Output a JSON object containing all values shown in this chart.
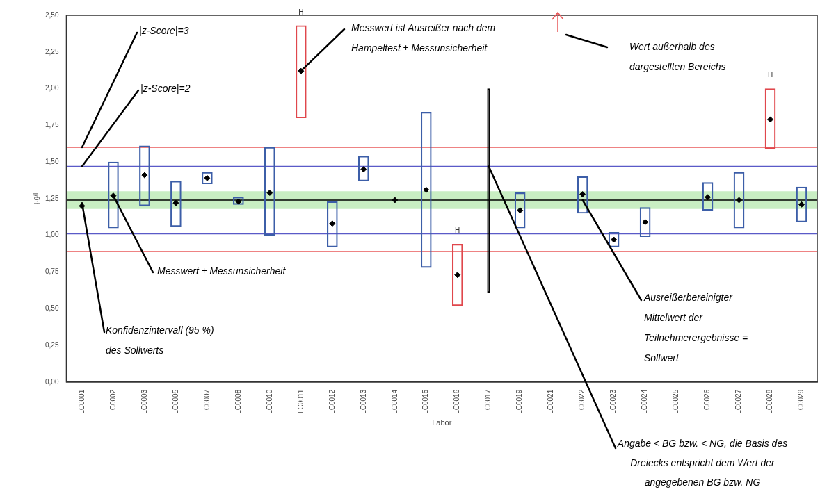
{
  "chart_data": {
    "type": "scatter",
    "xlabel": "Labor",
    "ylabel": "µg/l",
    "legend": false,
    "grid": false,
    "marker": "diamond",
    "categories": [
      "LC0001",
      "LC0002",
      "LC0003",
      "LC0005",
      "LC0007",
      "LC0008",
      "LC0010",
      "LC0011",
      "LC0012",
      "LC0013",
      "LC0014",
      "LC0015",
      "LC0016",
      "LC0017",
      "LC0019",
      "LC0021",
      "LC0022",
      "LC0023",
      "LC0024",
      "LC0025",
      "LC0026",
      "LC0027",
      "LC0028",
      "LC0029"
    ],
    "ylim": [
      0,
      2.5
    ],
    "yticks": [
      {
        "value": 0,
        "label": "0,00"
      },
      {
        "value": 0.25,
        "label": "0,25"
      },
      {
        "value": 0.5,
        "label": "0,50"
      },
      {
        "value": 0.75,
        "label": "0,75"
      },
      {
        "value": 1,
        "label": "1,00"
      },
      {
        "value": 1.25,
        "label": "1,25"
      },
      {
        "value": 1.5,
        "label": "1,50"
      },
      {
        "value": 1.75,
        "label": "1,75"
      },
      {
        "value": 2,
        "label": "2,00"
      },
      {
        "value": 2.25,
        "label": "2,25"
      },
      {
        "value": 2.5,
        "label": "2,50"
      }
    ],
    "series": [
      {
        "color": "#000000",
        "values": [
          1.2,
          1.27,
          1.41,
          1.22,
          1.39,
          1.23,
          1.29,
          2.12,
          1.08,
          1.45,
          1.24,
          1.31,
          0.73,
          null,
          1.17,
          null,
          1.28,
          0.97,
          1.09,
          null,
          1.26,
          1.24,
          1.79,
          1.21
        ]
      },
      {
        "type": "bar",
        "base": [
          null,
          1.05,
          1.2,
          1.06,
          1.35,
          1.21,
          1.0,
          1.8,
          0.92,
          1.37,
          null,
          0.78,
          0.52,
          null,
          1.05,
          null,
          1.15,
          0.92,
          0.99,
          null,
          1.17,
          1.05,
          1.59,
          1.09
        ],
        "values": [
          null,
          0.45,
          0.41,
          0.31,
          0.08,
          0.05,
          0.6,
          0.63,
          0.31,
          0.17,
          null,
          1.06,
          0.42,
          null,
          0.24,
          null,
          0.25,
          0.1,
          0.2,
          null,
          0.19,
          0.38,
          0.41,
          0.24
        ],
        "colors": [
          "#3c5ea8",
          "#3c5ea8",
          "#3c5ea8",
          "#3c5ea8",
          "#3c5ea8",
          "#3c5ea8",
          "#3c5ea8",
          "#e0474c",
          "#3c5ea8",
          "#3c5ea8",
          "#3c5ea8",
          "#3c5ea8",
          "#e0474c",
          "#3c5ea8",
          "#3c5ea8",
          "#3c5ea8",
          "#3c5ea8",
          "#3c5ea8",
          "#3c5ea8",
          "#3c5ea8",
          "#3c5ea8",
          "#3c5ea8",
          "#e0474c",
          "#3c5ea8"
        ]
      },
      {
        "type": "bar",
        "color": "#000000",
        "base": [
          null,
          null,
          null,
          null,
          null,
          null,
          null,
          null,
          null,
          null,
          null,
          null,
          null,
          0.61,
          null,
          null,
          null,
          null,
          null,
          null,
          null,
          null,
          null,
          null
        ],
        "values": [
          null,
          null,
          null,
          null,
          null,
          null,
          null,
          null,
          null,
          null,
          null,
          null,
          null,
          1.39,
          null,
          null,
          null,
          null,
          null,
          null,
          null,
          null,
          null,
          null
        ]
      }
    ],
    "ref_lines": [
      {
        "axis": "y",
        "value": 1.6,
        "color": "#e8585a"
      },
      {
        "axis": "y",
        "value": 1.47,
        "color": "#5a5ac8"
      },
      {
        "axis": "y",
        "value": 1.24,
        "color": "#000000"
      },
      {
        "axis": "y",
        "value": 1.01,
        "color": "#5a5ac8"
      },
      {
        "axis": "y",
        "value": 0.89,
        "color": "#e8585a"
      }
    ],
    "bands": [
      {
        "axis": "y",
        "from": 1.18,
        "to": 1.3,
        "color": "#c9eec3"
      }
    ],
    "annotations": [
      {
        "text": "|z-Score|=3",
        "x": "LC0001",
        "y": 1.6
      },
      {
        "text": "|z-Score|=2",
        "x": "LC0001",
        "y": 1.47
      },
      {
        "text": "Messwert ist Ausreißer nach dem Hampeltest ± Messunsicherheit",
        "x": "LC0011",
        "y": 2.12
      },
      "Wert außerhalb des dargestellten Bereichs",
      {
        "text": "Messwert ± Messunsicherheit",
        "x": "LC0002",
        "y": 1.27
      },
      {
        "text": "Konfidenzintervall (95 %) des Sollwerts",
        "x": "LC0001",
        "y": 1.22
      },
      {
        "text": "Ausreißerbereinigter Mittelwert der Teilnehmerergebnisse = Sollwert",
        "x": "LC0022",
        "y": 1.24
      },
      {
        "text": "Angabe < BG bzw. < NG, die Basis des Dreiecks entspricht dem Wert der angegebenen BG bzw. NG",
        "x": "LC0017",
        "y": 1.47
      },
      {
        "text": "H",
        "x": "LC0011",
        "y": 2.43
      },
      {
        "text": "H",
        "x": "LC0016",
        "y": 0.94
      },
      {
        "text": "H",
        "x": "LC0028",
        "y": 2.0
      }
    ]
  }
}
